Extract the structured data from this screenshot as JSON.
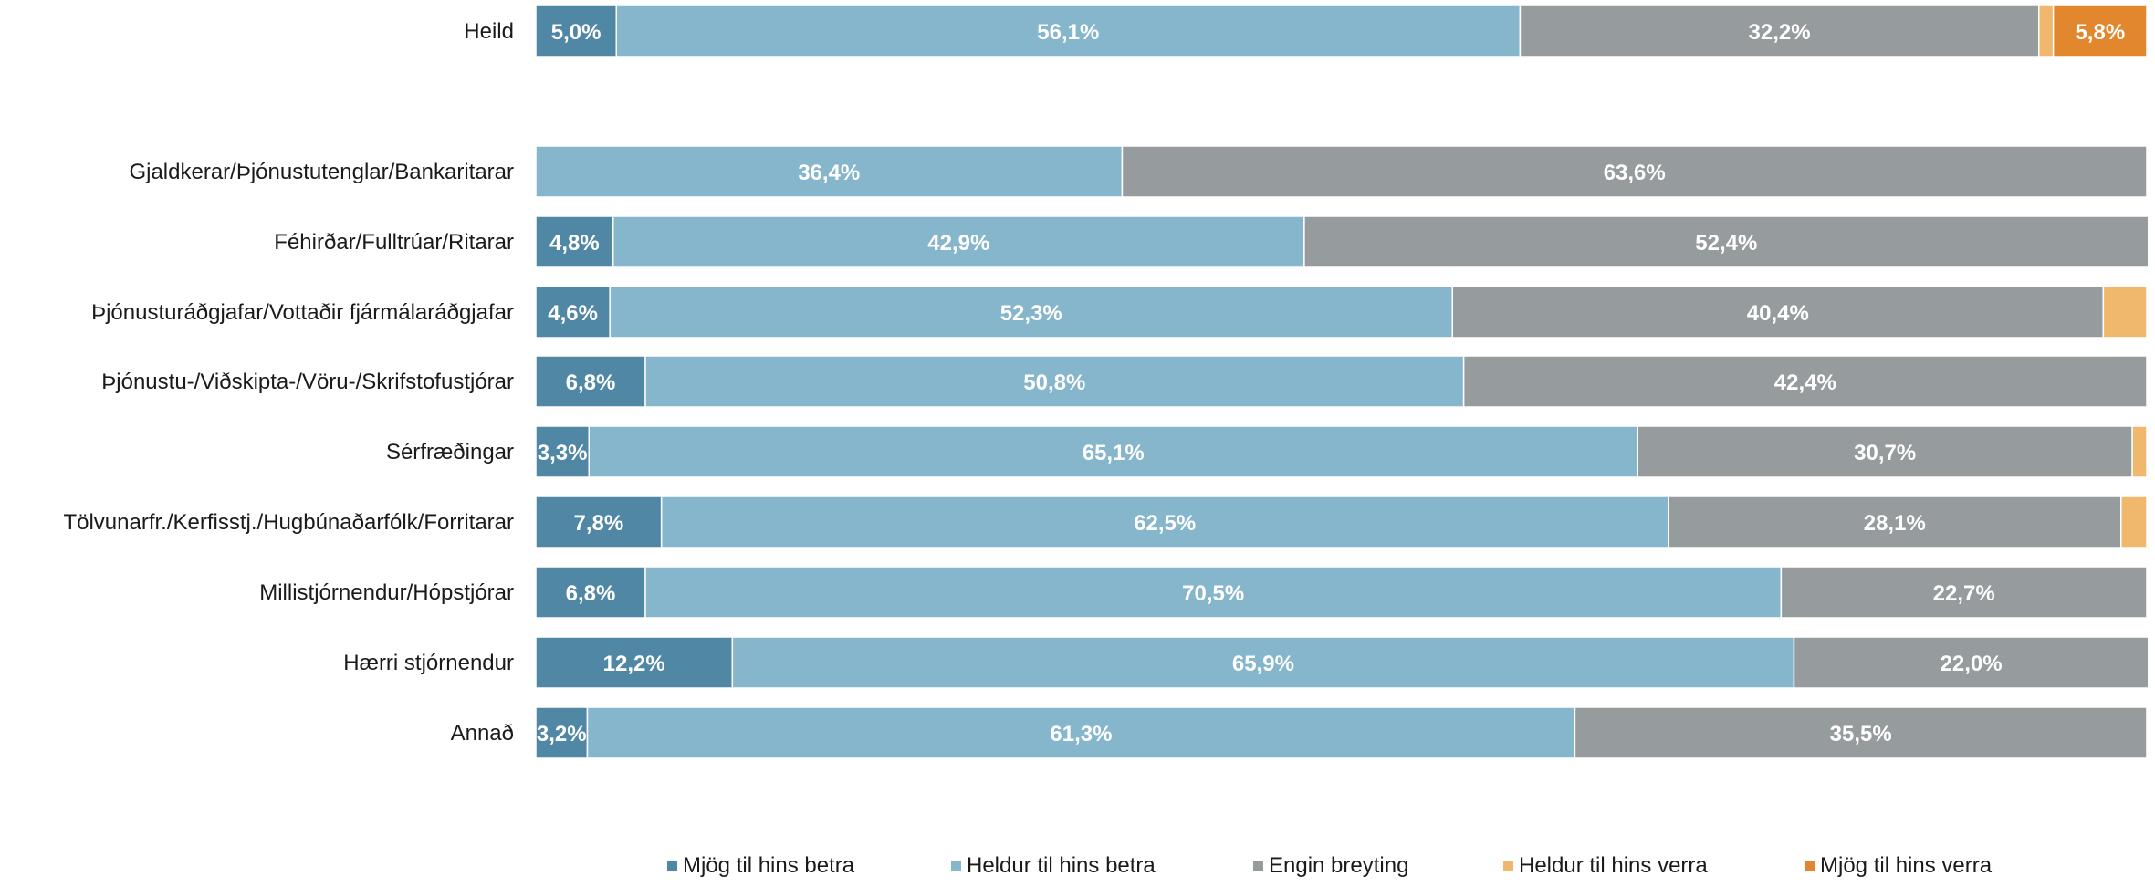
{
  "chart_data": {
    "type": "bar",
    "orientation": "horizontal",
    "stacked": "percent",
    "title": "",
    "xlabel": "",
    "ylabel": "",
    "xlim": [
      0,
      100
    ],
    "grid": false,
    "legend_position": "bottom",
    "categories": [
      "Heild",
      "Gjaldkerar/Þjónustutenglar/Bankaritarar",
      "Féhirðar/Fulltrúar/Ritarar",
      "Þjónusturáðgjafar/Vottaðir fjármálaráðgjafar",
      "Þjónustu-/Viðskipta-/Vöru-/Skrifstofustjórar",
      "Sérfræðingar",
      "Tölvunarfr./Kerfisstj./Hugbúnaðarfólk/Forritarar",
      "Millistjórnendur/Hópstjórar",
      "Hærri stjórnendur",
      "Annað"
    ],
    "series": [
      {
        "name": "Mjög til hins betra",
        "color": "#4f87a5",
        "values": [
          5.0,
          0,
          4.8,
          4.6,
          6.8,
          3.3,
          7.8,
          6.8,
          12.2,
          3.2
        ],
        "labels": [
          "5,0%",
          "",
          "4,8%",
          "4,6%",
          "6,8%",
          "3,3%",
          "7,8%",
          "6,8%",
          "12,2%",
          "3,2%"
        ]
      },
      {
        "name": "Heldur til hins betra",
        "color": "#86b6cc",
        "values": [
          56.1,
          36.4,
          42.9,
          52.3,
          50.8,
          65.1,
          62.5,
          70.5,
          65.9,
          61.3
        ],
        "labels": [
          "56,1%",
          "36,4%",
          "42,9%",
          "52,3%",
          "50,8%",
          "65,1%",
          "62,5%",
          "70,5%",
          "65,9%",
          "61,3%"
        ]
      },
      {
        "name": "Engin breyting",
        "color": "#969c9e",
        "values": [
          32.2,
          63.6,
          52.4,
          40.4,
          42.4,
          30.7,
          28.1,
          22.7,
          22.0,
          35.5
        ],
        "labels": [
          "32,2%",
          "63,6%",
          "52,4%",
          "40,4%",
          "42,4%",
          "30,7%",
          "28,1%",
          "22,7%",
          "22,0%",
          "35,5%"
        ]
      },
      {
        "name": "Heldur til hins verra",
        "color": "#efb86c",
        "values": [
          0.9,
          0,
          0,
          2.7,
          0,
          0.9,
          1.6,
          0,
          0,
          0
        ],
        "labels": [
          "",
          "",
          "",
          "",
          "",
          "",
          "",
          "",
          "",
          ""
        ]
      },
      {
        "name": "Mjög til hins verra",
        "color": "#e3872f",
        "values": [
          5.8,
          0,
          0,
          0,
          0,
          0,
          0,
          0,
          0,
          0
        ],
        "labels": [
          "5,8%",
          "",
          "",
          "",
          "",
          "",
          "",
          "",
          "",
          ""
        ]
      }
    ]
  }
}
